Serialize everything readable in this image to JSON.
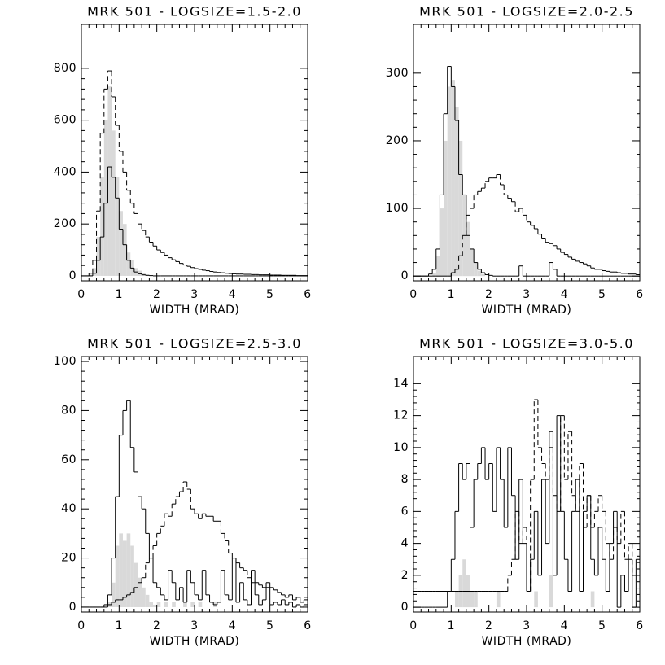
{
  "chart_data": [
    {
      "type": "histogram",
      "title": "MRK 501 - LOGSIZE=1.5-2.0",
      "x_label": "WIDTH (MRAD)",
      "bins": [
        0,
        0.1,
        0.2,
        0.3,
        0.4,
        0.5,
        0.6,
        0.7,
        0.8,
        0.9,
        1,
        1.1,
        1.2,
        1.3,
        1.4,
        1.5,
        1.6,
        1.7,
        1.8,
        1.9,
        2,
        2.1,
        2.2,
        2.3,
        2.4,
        2.5,
        2.6,
        2.7,
        2.8,
        2.9,
        3,
        3.1,
        3.2,
        3.3,
        3.4,
        3.5,
        3.6,
        3.7,
        3.8,
        3.9,
        4,
        4.1,
        4.2,
        4.3,
        4.4,
        4.5,
        4.6,
        4.7,
        4.8,
        4.9,
        5,
        5.1,
        5.2,
        5.3,
        5.4,
        5.5,
        5.6,
        5.7,
        5.8,
        5.9,
        6
      ],
      "series": [
        {
          "color": "#d9d9d9",
          "style": "filled",
          "values": [
            0,
            0,
            5,
            30,
            150,
            380,
            600,
            730,
            560,
            380,
            250,
            200,
            90,
            60,
            30,
            20,
            10,
            5,
            3,
            0,
            0,
            0,
            0,
            0,
            0,
            0,
            0,
            0,
            0,
            0,
            0,
            0,
            0,
            0,
            0,
            0,
            0,
            0,
            0,
            0,
            0,
            0,
            0,
            0,
            0,
            0,
            0,
            0,
            0,
            0,
            0,
            0,
            0,
            0,
            0,
            0,
            0,
            0,
            0,
            0
          ]
        },
        {
          "color": "#000000",
          "style": "solid",
          "values": [
            0,
            0,
            0,
            10,
            60,
            150,
            280,
            420,
            380,
            300,
            180,
            120,
            60,
            30,
            15,
            8,
            4,
            2,
            1,
            0,
            0,
            0,
            0,
            0,
            0,
            0,
            0,
            0,
            0,
            0,
            0,
            0,
            0,
            0,
            0,
            0,
            0,
            0,
            0,
            0,
            0,
            0,
            0,
            0,
            0,
            0,
            0,
            0,
            0,
            0,
            0,
            0,
            0,
            0,
            0,
            0,
            0,
            0,
            0,
            0
          ]
        },
        {
          "color": "#000000",
          "style": "dashed",
          "values": [
            0,
            0,
            10,
            60,
            250,
            550,
            720,
            790,
            690,
            580,
            480,
            400,
            330,
            280,
            240,
            200,
            175,
            150,
            130,
            115,
            100,
            90,
            80,
            70,
            62,
            55,
            48,
            42,
            37,
            32,
            28,
            25,
            22,
            20,
            17,
            15,
            13,
            12,
            10,
            9,
            8,
            7,
            7,
            6,
            6,
            5,
            5,
            4,
            4,
            4,
            3,
            3,
            3,
            2,
            2,
            2,
            2,
            1,
            1,
            1
          ]
        }
      ],
      "xlim": [
        0,
        6
      ],
      "ylim": [
        -19,
        969
      ],
      "xticks": [
        0,
        1,
        2,
        3,
        4,
        5,
        6
      ],
      "yticks": [
        0,
        200,
        400,
        600,
        800
      ]
    },
    {
      "type": "histogram",
      "title": "MRK 501 - LOGSIZE=2.0-2.5",
      "x_label": "WIDTH (MRAD)",
      "bins": [
        0,
        0.1,
        0.2,
        0.3,
        0.4,
        0.5,
        0.6,
        0.7,
        0.8,
        0.9,
        1,
        1.1,
        1.2,
        1.3,
        1.4,
        1.5,
        1.6,
        1.7,
        1.8,
        1.9,
        2,
        2.1,
        2.2,
        2.3,
        2.4,
        2.5,
        2.6,
        2.7,
        2.8,
        2.9,
        3,
        3.1,
        3.2,
        3.3,
        3.4,
        3.5,
        3.6,
        3.7,
        3.8,
        3.9,
        4,
        4.1,
        4.2,
        4.3,
        4.4,
        4.5,
        4.6,
        4.7,
        4.8,
        4.9,
        5,
        5.1,
        5.2,
        5.3,
        5.4,
        5.5,
        5.6,
        5.7,
        5.8,
        5.9,
        6
      ],
      "series": [
        {
          "color": "#d9d9d9",
          "style": "filled",
          "values": [
            0,
            0,
            0,
            0,
            0,
            5,
            30,
            100,
            200,
            280,
            290,
            250,
            200,
            120,
            80,
            40,
            20,
            8,
            3,
            0,
            0,
            0,
            0,
            0,
            0,
            0,
            0,
            0,
            0,
            0,
            0,
            0,
            0,
            0,
            0,
            0,
            0,
            0,
            0,
            0,
            0,
            0,
            0,
            0,
            0,
            0,
            0,
            0,
            0,
            0,
            0,
            0,
            0,
            0,
            0,
            0,
            0,
            0,
            0,
            0
          ]
        },
        {
          "color": "#000000",
          "style": "solid",
          "values": [
            0,
            0,
            0,
            0,
            3,
            10,
            40,
            120,
            240,
            310,
            280,
            230,
            150,
            120,
            60,
            40,
            20,
            10,
            5,
            2,
            1,
            0,
            0,
            0,
            0,
            0,
            0,
            0,
            15,
            0,
            0,
            0,
            0,
            0,
            0,
            0,
            20,
            10,
            0,
            0,
            0,
            0,
            0,
            0,
            0,
            0,
            0,
            0,
            0,
            0,
            0,
            0,
            0,
            0,
            0,
            0,
            0,
            0,
            0,
            0
          ]
        },
        {
          "color": "#000000",
          "style": "dashed",
          "values": [
            0,
            0,
            0,
            0,
            0,
            0,
            0,
            0,
            0,
            0,
            5,
            10,
            30,
            60,
            90,
            100,
            120,
            125,
            130,
            140,
            145,
            145,
            150,
            135,
            120,
            115,
            110,
            95,
            100,
            90,
            80,
            75,
            70,
            62,
            55,
            50,
            48,
            45,
            40,
            35,
            32,
            28,
            25,
            22,
            20,
            18,
            15,
            12,
            10,
            10,
            8,
            7,
            6,
            6,
            5,
            4,
            4,
            3,
            3,
            2
          ]
        }
      ],
      "xlim": [
        0,
        6
      ],
      "ylim": [
        -7,
        372
      ],
      "xticks": [
        0,
        1,
        2,
        3,
        4,
        5,
        6
      ],
      "yticks": [
        0,
        100,
        200,
        300
      ]
    },
    {
      "type": "histogram",
      "title": "MRK 501 - LOGSIZE=2.5-3.0",
      "x_label": "WIDTH (MRAD)",
      "bins": [
        0,
        0.1,
        0.2,
        0.3,
        0.4,
        0.5,
        0.6,
        0.7,
        0.8,
        0.9,
        1,
        1.1,
        1.2,
        1.3,
        1.4,
        1.5,
        1.6,
        1.7,
        1.8,
        1.9,
        2,
        2.1,
        2.2,
        2.3,
        2.4,
        2.5,
        2.6,
        2.7,
        2.8,
        2.9,
        3,
        3.1,
        3.2,
        3.3,
        3.4,
        3.5,
        3.6,
        3.7,
        3.8,
        3.9,
        4,
        4.1,
        4.2,
        4.3,
        4.4,
        4.5,
        4.6,
        4.7,
        4.8,
        4.9,
        5,
        5.1,
        5.2,
        5.3,
        5.4,
        5.5,
        5.6,
        5.7,
        5.8,
        5.9,
        6
      ],
      "series": [
        {
          "color": "#d9d9d9",
          "style": "filled",
          "values": [
            0,
            0,
            0,
            0,
            0,
            0,
            0,
            2,
            10,
            25,
            30,
            27,
            30,
            25,
            18,
            12,
            8,
            5,
            2,
            1,
            2,
            0,
            2,
            0,
            2,
            0,
            0,
            2,
            0,
            2,
            0,
            2,
            0,
            0,
            0,
            2,
            0,
            0,
            0,
            0,
            0,
            0,
            0,
            0,
            0,
            0,
            0,
            0,
            0,
            0,
            0,
            0,
            0,
            0,
            0,
            0,
            0,
            0,
            0,
            0
          ]
        },
        {
          "color": "#000000",
          "style": "solid",
          "values": [
            0,
            0,
            0,
            0,
            0,
            0,
            1,
            5,
            20,
            45,
            70,
            80,
            84,
            65,
            55,
            45,
            40,
            30,
            20,
            10,
            8,
            5,
            3,
            15,
            10,
            3,
            8,
            2,
            15,
            10,
            5,
            3,
            15,
            5,
            2,
            1,
            2,
            15,
            5,
            3,
            20,
            2,
            10,
            3,
            1,
            15,
            5,
            1,
            3,
            8,
            1,
            2,
            1,
            3,
            1,
            2,
            0,
            1,
            0,
            1
          ]
        },
        {
          "color": "#000000",
          "style": "dashed",
          "values": [
            0,
            0,
            0,
            0,
            0,
            0,
            0,
            1,
            2,
            3,
            3,
            4,
            5,
            6,
            8,
            10,
            12,
            18,
            20,
            25,
            30,
            33,
            38,
            37,
            42,
            45,
            47,
            51,
            48,
            40,
            38,
            36,
            38,
            37,
            37,
            35,
            35,
            30,
            27,
            22,
            20,
            18,
            16,
            15,
            12,
            10,
            10,
            9,
            8,
            10,
            8,
            7,
            6,
            5,
            4,
            5,
            3,
            4,
            2,
            3
          ]
        }
      ],
      "xlim": [
        0,
        6
      ],
      "ylim": [
        -2,
        102
      ],
      "xticks": [
        0,
        1,
        2,
        3,
        4,
        5,
        6
      ],
      "yticks": [
        0,
        20,
        40,
        60,
        80,
        100
      ]
    },
    {
      "type": "histogram",
      "title": "MRK 501 - LOGSIZE=3.0-5.0",
      "x_label": "WIDTH (MRAD)",
      "bins": [
        0,
        0.1,
        0.2,
        0.3,
        0.4,
        0.5,
        0.6,
        0.7,
        0.8,
        0.9,
        1,
        1.1,
        1.2,
        1.3,
        1.4,
        1.5,
        1.6,
        1.7,
        1.8,
        1.9,
        2,
        2.1,
        2.2,
        2.3,
        2.4,
        2.5,
        2.6,
        2.7,
        2.8,
        2.9,
        3,
        3.1,
        3.2,
        3.3,
        3.4,
        3.5,
        3.6,
        3.7,
        3.8,
        3.9,
        4,
        4.1,
        4.2,
        4.3,
        4.4,
        4.5,
        4.6,
        4.7,
        4.8,
        4.9,
        5,
        5.1,
        5.2,
        5.3,
        5.4,
        5.5,
        5.6,
        5.7,
        5.8,
        5.9,
        6
      ],
      "series": [
        {
          "color": "#d9d9d9",
          "style": "filled",
          "values": [
            0,
            0,
            0,
            0,
            0,
            0,
            0,
            0,
            0,
            0,
            0,
            1,
            2,
            3,
            2,
            1,
            1,
            0,
            0,
            0,
            0,
            0,
            1,
            0,
            0,
            0,
            0,
            0,
            0,
            0,
            0,
            0,
            1,
            0,
            0,
            0,
            2,
            0,
            0,
            0,
            0,
            0,
            0,
            0,
            0,
            0,
            0,
            1,
            0,
            0,
            0,
            0,
            0,
            0,
            0,
            0,
            0,
            0,
            0,
            0
          ]
        },
        {
          "color": "#000000",
          "style": "solid",
          "values": [
            0,
            0,
            0,
            0,
            0,
            0,
            0,
            0,
            0,
            1,
            3,
            6,
            9,
            8,
            9,
            5,
            8,
            9,
            10,
            8,
            9,
            6,
            10,
            8,
            5,
            10,
            7,
            3,
            8,
            4,
            1,
            3,
            6,
            2,
            8,
            4,
            11,
            2,
            12,
            6,
            3,
            1,
            6,
            8,
            1,
            6,
            7,
            3,
            2,
            5,
            3,
            1,
            4,
            6,
            0,
            2,
            1,
            3,
            0,
            3
          ]
        },
        {
          "color": "#000000",
          "style": "dashed",
          "values": [
            1,
            1,
            1,
            1,
            1,
            1,
            1,
            1,
            1,
            1,
            1,
            1,
            1,
            1,
            1,
            1,
            1,
            1,
            1,
            1,
            1,
            1,
            1,
            1,
            1,
            2,
            3,
            6,
            4,
            5,
            1,
            8,
            13,
            10,
            9,
            8,
            10,
            7,
            6,
            12,
            8,
            11,
            7,
            6,
            9,
            5,
            7,
            5,
            6,
            7,
            6,
            4,
            3,
            5,
            4,
            6,
            3,
            4,
            2,
            2
          ]
        }
      ],
      "xlim": [
        0,
        6
      ],
      "ylim": [
        -0.3,
        15.7
      ],
      "xticks": [
        0,
        1,
        2,
        3,
        4,
        5,
        6
      ],
      "yticks": [
        0,
        2,
        4,
        6,
        8,
        10,
        12,
        14
      ]
    }
  ]
}
